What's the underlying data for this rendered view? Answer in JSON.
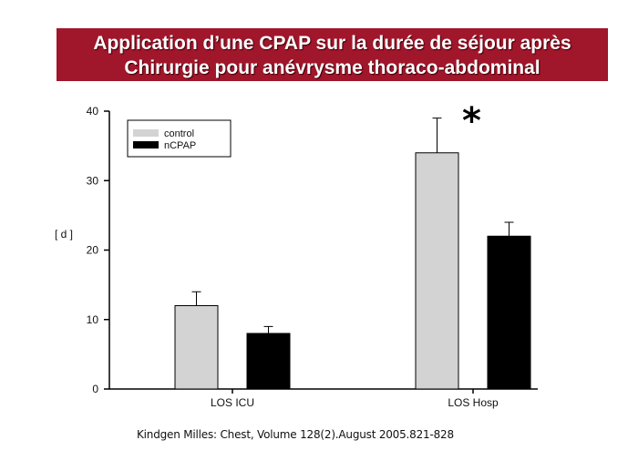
{
  "slide": {
    "title_line1": "Application d’une CPAP sur la durée de séjour après",
    "title_line2": "Chirurgie pour anévrysme thoraco-abdominal",
    "caption": "Kindgen Milles: Chest, Volume 128(2).August 2005.821-828",
    "colors": {
      "banner": "#a0162b",
      "control": "#d3d3d3",
      "ncpap": "#000000"
    }
  },
  "chart_data": {
    "type": "bar",
    "categories": [
      "LOS ICU",
      "LOS Hosp"
    ],
    "series": [
      {
        "name": "control",
        "values": [
          12,
          34
        ],
        "error": [
          2,
          5
        ],
        "color": "#d3d3d3"
      },
      {
        "name": "nCPAP",
        "values": [
          8,
          22
        ],
        "error": [
          1,
          2
        ],
        "color": "#000000"
      }
    ],
    "ylabel": "[ d ]",
    "ylim": [
      0,
      40
    ],
    "yticks": [
      "0",
      "10",
      "20",
      "30",
      "40"
    ],
    "legend": "top-left",
    "grid": false,
    "annotations": [
      {
        "text": "*",
        "category": "LOS Hosp"
      }
    ]
  }
}
